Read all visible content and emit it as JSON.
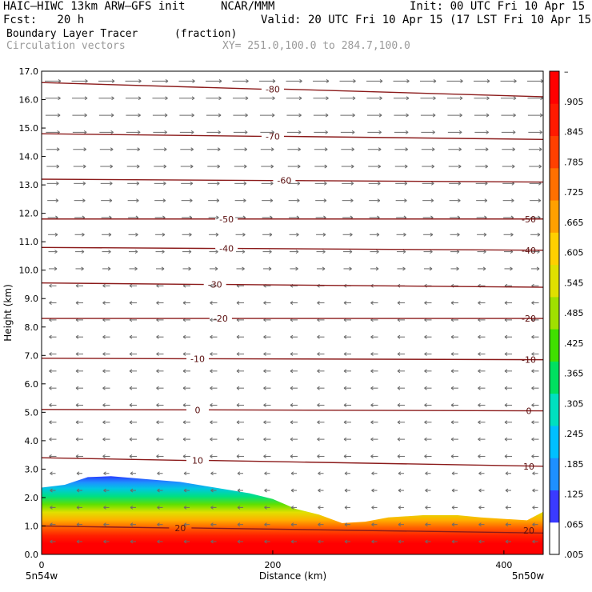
{
  "header": {
    "model": "HAIC–HIWC 13km ARW–GFS init",
    "org": "NCAR/MMM",
    "init": "Init: 00 UTC Fri 10 Apr 15",
    "fcst": "Fcst:   20 h",
    "valid": "Valid: 20 UTC Fri 10 Apr 15 (17 LST Fri 10 Apr 15)",
    "field": "Boundary Layer Tracer",
    "units": "(fraction)",
    "vectors": "Circulation vectors",
    "xy": "XY= 251.0,100.0 to 284.7,100.0"
  },
  "chart_data": {
    "type": "heatmap",
    "title": "Boundary Layer Tracer",
    "units": "(fraction)",
    "xlabel": "Distance (km)",
    "ylabel": "Height (km)",
    "xlim": [
      0,
      434
    ],
    "ylim": [
      0,
      17
    ],
    "x_ticks": [
      "0",
      "200",
      "400"
    ],
    "x_end_labels": [
      "5n54w",
      "5n50w"
    ],
    "y_ticks": [
      "0.0",
      "1.0",
      "2.0",
      "3.0",
      "4.0",
      "5.0",
      "6.0",
      "7.0",
      "8.0",
      "9.0",
      "10.0",
      "11.0",
      "12.0",
      "13.0",
      "14.0",
      "15.0",
      "16.0",
      "17.0"
    ],
    "colorbar": {
      "labels": [
        "–",
        ".905",
        ".845",
        ".785",
        ".725",
        ".665",
        ".605",
        ".545",
        ".485",
        ".425",
        ".365",
        ".305",
        ".245",
        ".185",
        ".125",
        ".065",
        ".005"
      ],
      "colors": [
        "#ffffff",
        "#3a3aff",
        "#1e90ff",
        "#00c0ff",
        "#00e0c0",
        "#00e060",
        "#40e000",
        "#a0e000",
        "#e0e000",
        "#ffd000",
        "#ffa000",
        "#ff7000",
        "#ff4000",
        "#ff1a00",
        "#ff0000"
      ]
    },
    "tracer_top_km": {
      "x": [
        0,
        20,
        40,
        60,
        90,
        120,
        150,
        180,
        200,
        220,
        240,
        260,
        280,
        300,
        330,
        360,
        380,
        400,
        420,
        434
      ],
      "y": [
        2.35,
        2.45,
        2.72,
        2.75,
        2.65,
        2.55,
        2.35,
        2.15,
        1.95,
        1.6,
        1.4,
        1.1,
        1.15,
        1.3,
        1.38,
        1.38,
        1.3,
        1.25,
        1.2,
        1.5
      ]
    },
    "temperature_contours_C": [
      {
        "label": "-80",
        "y_start": 16.6,
        "y_end": 16.1,
        "label_x": 200
      },
      {
        "label": "-70",
        "y_start": 14.8,
        "y_end": 14.6,
        "label_x": 200
      },
      {
        "label": "-60",
        "y_start": 13.2,
        "y_end": 13.1,
        "label_x": 210
      },
      {
        "label": "-50",
        "y_start": 11.8,
        "y_end": 11.8,
        "label_x": 160
      },
      {
        "label": "-40",
        "y_start": 10.8,
        "y_end": 10.7,
        "label_x": 160
      },
      {
        "label": "-30",
        "y_start": 9.55,
        "y_end": 9.4,
        "label_x": 150
      },
      {
        "label": "-20",
        "y_start": 8.3,
        "y_end": 8.3,
        "label_x": 155
      },
      {
        "label": "-10",
        "y_start": 6.9,
        "y_end": 6.85,
        "label_x": 135
      },
      {
        "label": "0",
        "y_start": 5.1,
        "y_end": 5.05,
        "label_x": 135
      },
      {
        "label": "10",
        "y_start": 3.4,
        "y_end": 3.1,
        "label_x": 135
      },
      {
        "label": "20",
        "y_start": 1.0,
        "y_end": 0.75,
        "label_x": 120
      }
    ],
    "right_edge_contour_labels": [
      {
        "label": "-50",
        "y": 11.8
      },
      {
        "label": "-40",
        "y": 10.7
      },
      {
        "label": "-20",
        "y": 8.3
      },
      {
        "label": "-10",
        "y": 6.85
      },
      {
        "label": "0",
        "y": 5.05
      },
      {
        "label": "10",
        "y": 3.1
      },
      {
        "label": "20",
        "y": 0.85
      }
    ]
  }
}
